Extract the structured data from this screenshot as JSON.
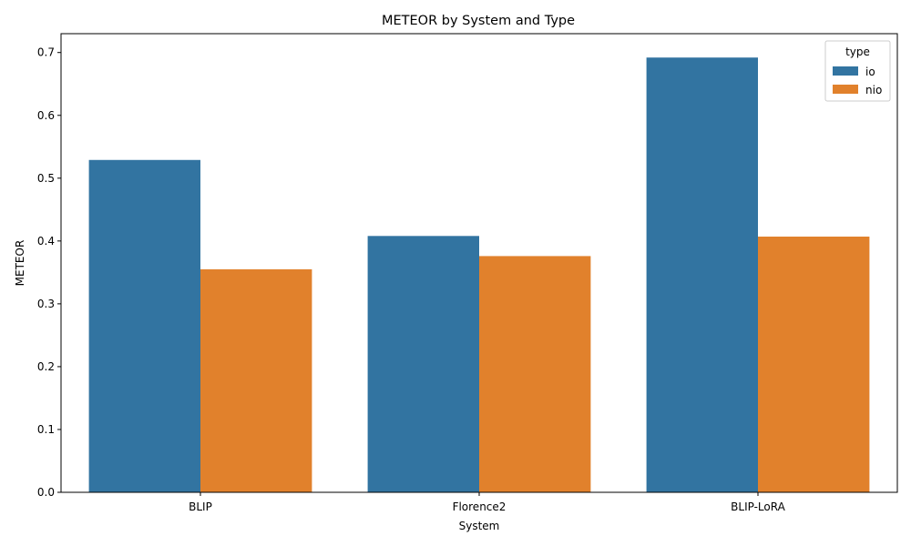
{
  "chart_data": {
    "type": "bar",
    "title": "METEOR by System and Type",
    "xlabel": "System",
    "ylabel": "METEOR",
    "categories": [
      "BLIP",
      "Florence2",
      "BLIP-LoRA"
    ],
    "series": [
      {
        "name": "io",
        "color": "#3274a1",
        "values": [
          0.529,
          0.408,
          0.692
        ]
      },
      {
        "name": "nio",
        "color": "#e1812c",
        "values": [
          0.355,
          0.376,
          0.407
        ]
      }
    ],
    "ylim": [
      0,
      0.73
    ],
    "yticks": [
      "0.0",
      "0.1",
      "0.2",
      "0.3",
      "0.4",
      "0.5",
      "0.6",
      "0.7"
    ],
    "grid": false,
    "legend": {
      "title": "type",
      "position": "top-right"
    }
  }
}
